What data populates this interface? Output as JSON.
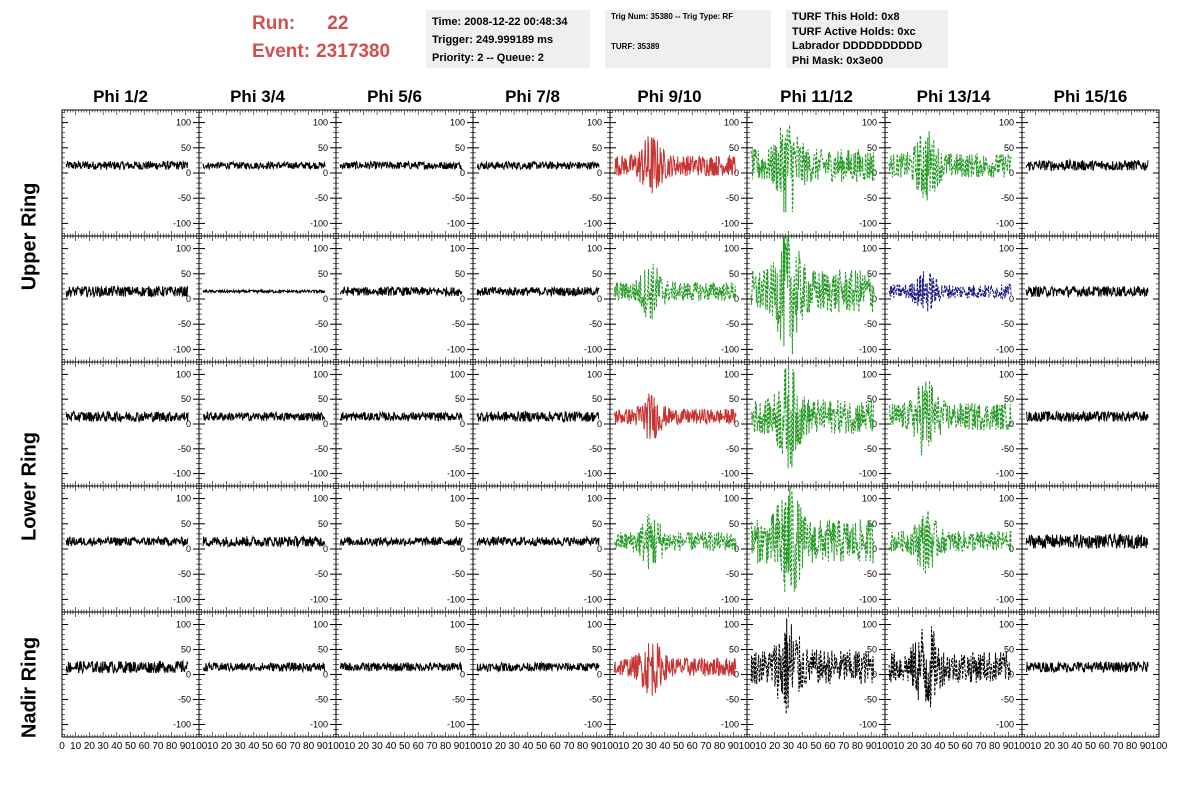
{
  "header": {
    "run_label": "Run:",
    "run_value": "22",
    "event_label": "Event:",
    "event_value": "2317380"
  },
  "info_box_1": {
    "time": "Time: 2008-12-22 00:48:34",
    "trigger": "Trigger: 249.999189 ms",
    "priority": "Priority: 2 -- Queue: 2"
  },
  "info_box_2": {
    "trig": "Trig Num: 35380 -- Trig Type: RF",
    "turf": "TURF: 35389"
  },
  "info_box_3": {
    "hold": "TURF This Hold: 0x8",
    "active": "TURF Active Holds: 0xc",
    "labrador": "Labrador DDDDDDDDDD",
    "mask": "Phi Mask: 0x3e00"
  },
  "phi_headers": [
    "Phi 1/2",
    "Phi 3/4",
    "Phi 5/6",
    "Phi 7/8",
    "Phi 9/10",
    "Phi 11/12",
    "Phi 13/14",
    "Phi 15/16"
  ],
  "ring_labels": [
    "Upper Ring",
    "Lower Ring",
    "Nadir Ring"
  ],
  "colors": {
    "normal": "#000000",
    "triggered": "#c83232",
    "coincident": "#229922",
    "masked": "#1a1a80",
    "title": "#d05050"
  },
  "chart_data": {
    "type": "line",
    "description_rows": [
      "Upper Ring row 1",
      "Upper Ring row 2",
      "Lower Ring row 1",
      "Lower Ring row 2",
      "Nadir Ring"
    ],
    "xlim": [
      0,
      100
    ],
    "ylim": [
      -125,
      125
    ],
    "y_ticks": [
      -100,
      -50,
      0,
      50,
      100
    ],
    "x_tick_labels": [
      "0",
      "10",
      "20",
      "30",
      "40",
      "50",
      "60",
      "70",
      "80",
      "90",
      "100"
    ],
    "panel_styles": [
      [
        "normal",
        "normal",
        "normal",
        "normal",
        "triggered",
        "coincident",
        "coincident",
        "normal"
      ],
      [
        "normal",
        "normal",
        "normal",
        "normal",
        "coincident",
        "coincident",
        "masked",
        "normal"
      ],
      [
        "normal",
        "normal",
        "normal",
        "normal",
        "triggered",
        "coincident",
        "coincident",
        "normal"
      ],
      [
        "normal",
        "normal",
        "normal",
        "normal",
        "coincident",
        "coincident",
        "coincident",
        "normal"
      ],
      [
        "normal",
        "normal",
        "normal",
        "normal",
        "triggered",
        "normal-dashed",
        "normal-dashed",
        "normal"
      ]
    ],
    "peak_amplitude": [
      [
        25,
        20,
        22,
        22,
        60,
        95,
        70,
        30
      ],
      [
        30,
        8,
        25,
        25,
        55,
        125,
        40,
        30
      ],
      [
        30,
        25,
        25,
        30,
        45,
        100,
        80,
        30
      ],
      [
        25,
        30,
        25,
        25,
        55,
        125,
        60,
        40
      ],
      [
        35,
        25,
        25,
        25,
        55,
        100,
        90,
        30
      ]
    ]
  }
}
